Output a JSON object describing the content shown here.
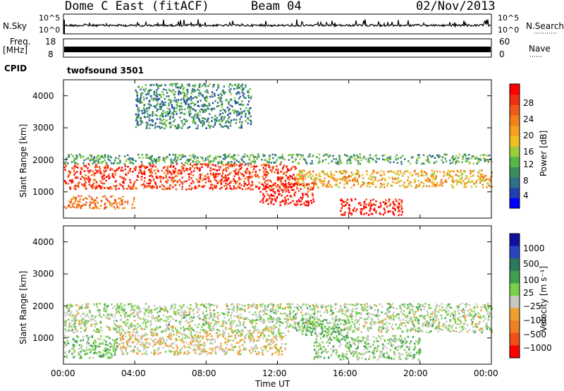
{
  "header": {
    "station": "Dome C East (fitACF)",
    "beam": "Beam 04",
    "date": "02/Nov/2013"
  },
  "top_panel": {
    "nsky_label": "N.Sky",
    "nsearch_label": "N.Search",
    "left_ticks": [
      "10^5",
      "10^0"
    ],
    "right_ticks": [
      "10^5",
      "10^0"
    ],
    "freq_label": "Freq.",
    "freq_unit": "[MHz]",
    "freq_ticks": [
      "18",
      "8"
    ],
    "nave_label": "Nave",
    "nave_ticks": [
      "60",
      "0"
    ],
    "cpid_label": "CPID",
    "cpid_value": "twofsound 3501"
  },
  "axes": {
    "ylabel": "Slant Range [km]",
    "xlabel": "Time UT",
    "yticks": [
      "1000",
      "2000",
      "3000",
      "4000"
    ],
    "xticks": [
      "00:00",
      "04:00",
      "08:00",
      "12:00",
      "16:00",
      "20:00",
      "00:00"
    ]
  },
  "colorbars": {
    "power": {
      "label": "Power [dB]",
      "ticks": [
        "4",
        "8",
        "12",
        "16",
        "20",
        "24",
        "28"
      ],
      "colors": [
        "#0000ff",
        "#2040b0",
        "#2f6f8a",
        "#3c8c5c",
        "#55b846",
        "#9ccc3a",
        "#f0c020",
        "#f7a020",
        "#f08018",
        "#f05a14",
        "#f03010",
        "#ff0000"
      ]
    },
    "velocity": {
      "label": "Velocity [m s⁻¹]",
      "ticks": [
        "1000",
        "500",
        "100",
        "25",
        "−25",
        "−100",
        "−500",
        "−1000"
      ],
      "colors": [
        "#1010a0",
        "#2844c0",
        "#2a7a5a",
        "#3ca050",
        "#7ad04a",
        "#c8c8c0",
        "#f0a030",
        "#f08020",
        "#f05018",
        "#ff0000"
      ]
    }
  },
  "chart_data": [
    {
      "type": "heatmap",
      "title": "Power",
      "xlabel": "Time UT",
      "ylabel": "Slant Range [km]",
      "xlim": [
        "00:00",
        "24:00"
      ],
      "ylim": [
        180,
        4500
      ],
      "colorbar_label": "Power [dB]",
      "colorbar_range": [
        0,
        30
      ],
      "bands": [
        {
          "t_start": 0.0,
          "t_end": 13.0,
          "r_min": 1100,
          "r_max": 1900,
          "value": 26
        },
        {
          "t_start": 13.0,
          "t_end": 24.0,
          "r_min": 1150,
          "r_max": 1700,
          "value": 18
        },
        {
          "t_start": 0.0,
          "t_end": 24.0,
          "r_min": 1900,
          "r_max": 2200,
          "value": 10
        },
        {
          "t_start": 0.0,
          "t_end": 4.0,
          "r_min": 500,
          "r_max": 900,
          "value": 22
        },
        {
          "t_start": 11.0,
          "t_end": 14.0,
          "r_min": 600,
          "r_max": 1300,
          "value": 28
        },
        {
          "t_start": 15.5,
          "t_end": 19.0,
          "r_min": 300,
          "r_max": 800,
          "value": 28
        },
        {
          "t_start": 4.0,
          "t_end": 10.5,
          "r_min": 3000,
          "r_max": 4400,
          "value": 8
        }
      ]
    },
    {
      "type": "heatmap",
      "title": "Velocity",
      "xlabel": "Time UT",
      "ylabel": "Slant Range [km]",
      "xlim": [
        "00:00",
        "24:00"
      ],
      "ylim": [
        180,
        4500
      ],
      "colorbar_label": "Velocity [m s⁻¹]",
      "colorbar_range": [
        -1000,
        1000
      ],
      "bands": [
        {
          "t_start": 0.0,
          "t_end": 24.0,
          "r_min": 1200,
          "r_max": 2100,
          "value": 0
        },
        {
          "t_start": 3.0,
          "t_end": 12.5,
          "r_min": 500,
          "r_max": 1200,
          "value": -150
        },
        {
          "t_start": 0.0,
          "t_end": 3.0,
          "r_min": 400,
          "r_max": 1100,
          "value": 150
        },
        {
          "t_start": 14.0,
          "t_end": 20.0,
          "r_min": 350,
          "r_max": 1100,
          "value": 80
        },
        {
          "t_start": 13.0,
          "t_end": 16.0,
          "r_min": 1100,
          "r_max": 1600,
          "value": 150
        }
      ]
    }
  ]
}
